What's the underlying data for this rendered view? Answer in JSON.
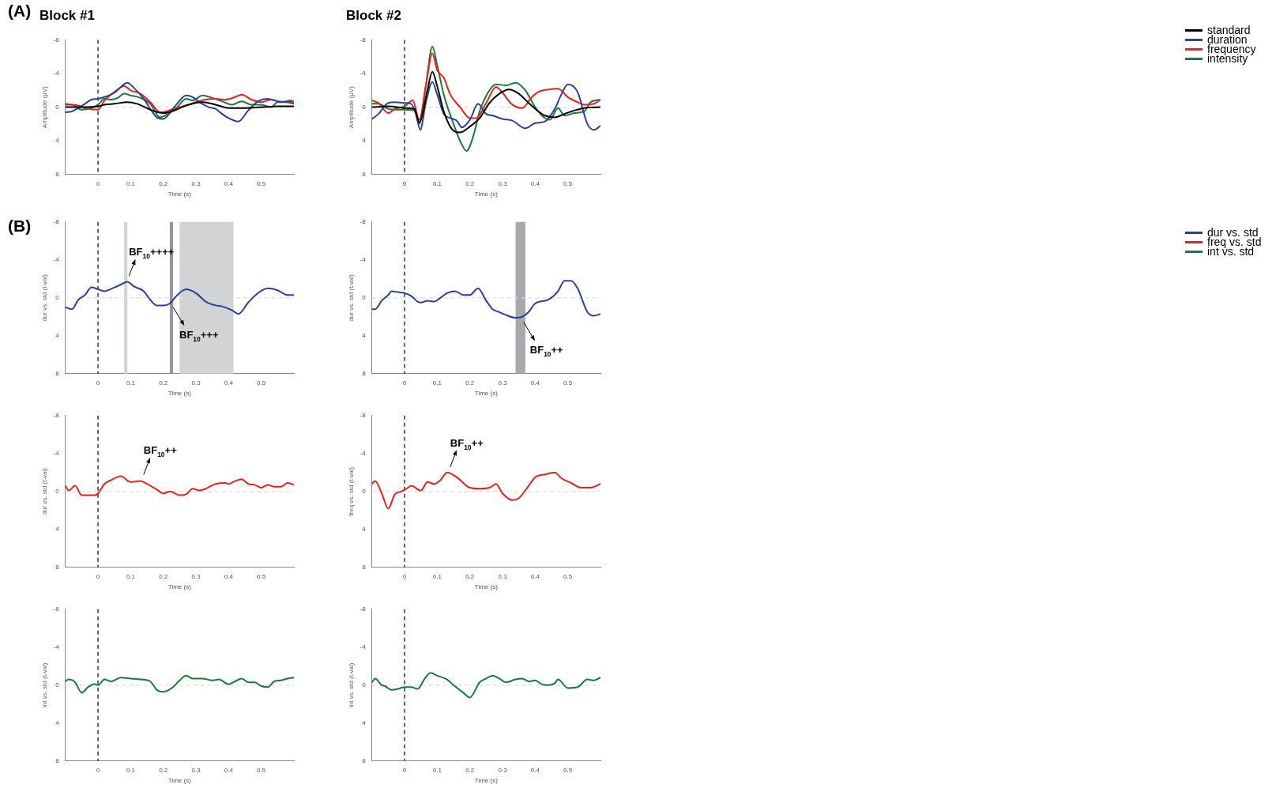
{
  "chart_data": [
    {
      "type": "line",
      "title": "Block #1",
      "xlabel": "Time (s)",
      "ylabel": "Amplitude (μV)",
      "annotations": [
        "(A)"
      ],
      "xlim": [
        -0.1,
        0.6
      ],
      "xticks": [
        0,
        0.1,
        0.2,
        0.3,
        0.4,
        0.5
      ],
      "ylim": [
        8,
        -8
      ],
      "yticks": [
        -8,
        -4,
        0,
        4,
        8
      ],
      "ref_lines": [
        {
          "axis": "x",
          "value": 0,
          "color": "#000000",
          "line_style": "dashed"
        },
        {
          "axis": "y",
          "value": 0,
          "color": "#dddddd",
          "line_style": "dashed"
        }
      ],
      "series": [
        {
          "color": "#000000",
          "x": [
            -0.1,
            -0.05,
            0,
            0.02,
            0.05,
            0.09,
            0.12,
            0.16,
            0.2,
            0.24,
            0.27,
            0.32,
            0.36,
            0.4,
            0.45,
            0.5,
            0.55,
            0.6
          ],
          "values": [
            0,
            0,
            -0.1,
            -0.3,
            -0.4,
            -0.6,
            -0.4,
            0.3,
            0.7,
            0.3,
            -0.2,
            -0.6,
            -0.3,
            0.1,
            0.1,
            0,
            -0.1,
            -0.1
          ]
        },
        {
          "color": "#2e3f97",
          "x": [
            -0.1,
            -0.08,
            -0.06,
            -0.04,
            -0.02,
            0,
            0.02,
            0.05,
            0.09,
            0.11,
            0.14,
            0.16,
            0.18,
            0.2,
            0.22,
            0.24,
            0.27,
            0.29,
            0.31,
            0.34,
            0.36,
            0.38,
            0.4,
            0.43,
            0.46,
            0.49,
            0.52,
            0.55,
            0.58,
            0.6
          ],
          "values": [
            0.6,
            0.5,
            0.1,
            -0.4,
            -0.9,
            -1,
            -1.2,
            -1.7,
            -2.9,
            -2.3,
            -1,
            0.2,
            1.2,
            1.4,
            0.7,
            -0.3,
            -1.4,
            -1.2,
            -0.6,
            0,
            0.2,
            0.8,
            1.3,
            1.7,
            0.4,
            -0.7,
            -1,
            -0.7,
            -0.6,
            -0.4
          ]
        },
        {
          "color": "#e8211f",
          "x": [
            -0.1,
            -0.08,
            -0.06,
            -0.04,
            0,
            0.02,
            0.05,
            0.08,
            0.1,
            0.13,
            0.16,
            0.19,
            0.21,
            0.23,
            0.26,
            0.3,
            0.33,
            0.36,
            0.39,
            0.42,
            0.44,
            0.47,
            0.5,
            0.53,
            0.56,
            0.59,
            0.6
          ],
          "values": [
            -0.4,
            -0.3,
            -0.2,
            0.1,
            0.3,
            -0.8,
            -1.8,
            -2.5,
            -2,
            -1.6,
            -0.6,
            0.6,
            0.5,
            0.2,
            -0.1,
            -0.6,
            -0.9,
            -1,
            -0.9,
            -1.2,
            -1.5,
            -0.9,
            -0.6,
            -0.9,
            -0.6,
            -0.8,
            -0.6
          ]
        },
        {
          "color": "#1a7a38",
          "x": [
            -0.1,
            -0.08,
            -0.05,
            -0.02,
            0,
            0.02,
            0.04,
            0.06,
            0.08,
            0.1,
            0.13,
            0.16,
            0.19,
            0.21,
            0.24,
            0.27,
            0.29,
            0.32,
            0.35,
            0.38,
            0.41,
            0.44,
            0.47,
            0.5,
            0.53,
            0.55,
            0.58,
            0.6
          ],
          "values": [
            -0.3,
            -0.3,
            0.3,
            0.1,
            -0.3,
            -1,
            -0.9,
            -1.1,
            -1.6,
            -1.4,
            -1.1,
            -0.4,
            1.2,
            0.9,
            0.1,
            -1,
            -0.8,
            -1.4,
            -1.1,
            -0.7,
            -0.3,
            -0.7,
            -0.3,
            -0.3,
            0,
            -0.6,
            -0.6,
            -0.7
          ]
        }
      ]
    },
    {
      "type": "line",
      "title": "Block #2",
      "xlabel": "Time (s)",
      "ylabel": "Amplitude (μV)",
      "legend": "right",
      "xlim": [
        -0.1,
        0.6
      ],
      "xticks": [
        0,
        0.1,
        0.2,
        0.3,
        0.4,
        0.5
      ],
      "ylim": [
        8,
        -8
      ],
      "yticks": [
        -8,
        -4,
        0,
        4,
        8
      ],
      "ref_lines": [
        {
          "axis": "x",
          "value": 0,
          "color": "#000000",
          "line_style": "dashed"
        },
        {
          "axis": "y",
          "value": 0,
          "color": "#dddddd",
          "line_style": "dashed"
        }
      ],
      "series": [
        {
          "name": "standard",
          "color": "#000000",
          "x": [
            -0.1,
            -0.05,
            0,
            0.03,
            0.045,
            0.07,
            0.085,
            0.1,
            0.12,
            0.15,
            0.17,
            0.2,
            0.23,
            0.26,
            0.29,
            0.32,
            0.35,
            0.38,
            0.41,
            0.43,
            0.46,
            0.49,
            0.52,
            0.55,
            0.6
          ],
          "values": [
            0,
            -0.1,
            0.1,
            0.2,
            1.8,
            -2,
            -4.2,
            -2.5,
            0.5,
            2.8,
            3,
            2.3,
            1.3,
            -0.5,
            -1.6,
            -2.1,
            -1.6,
            -0.5,
            0.5,
            1,
            1.2,
            0.8,
            0.4,
            0.1,
            0
          ]
        },
        {
          "name": "duration",
          "color": "#2e3f97",
          "x": [
            -0.1,
            -0.08,
            -0.05,
            -0.03,
            0,
            0.02,
            0.035,
            0.048,
            0.065,
            0.085,
            0.1,
            0.12,
            0.14,
            0.16,
            0.175,
            0.2,
            0.225,
            0.25,
            0.27,
            0.3,
            0.33,
            0.37,
            0.4,
            0.43,
            0.46,
            0.48,
            0.5,
            0.53,
            0.56,
            0.58,
            0.6
          ],
          "values": [
            1.4,
            0.8,
            -0.5,
            -0.6,
            -0.5,
            -0.4,
            0.8,
            2.7,
            -0.5,
            -3,
            -1.5,
            0.8,
            1.3,
            1.6,
            2.4,
            1.5,
            -0.4,
            0.8,
            1,
            1.4,
            1.6,
            2.5,
            1.9,
            1.7,
            0.2,
            -1.5,
            -2.7,
            -1.8,
            2,
            2.7,
            2.2
          ]
        },
        {
          "name": "frequency",
          "color": "#e8211f",
          "x": [
            -0.1,
            -0.08,
            -0.05,
            -0.03,
            0,
            0.025,
            0.045,
            0.065,
            0.085,
            0.1,
            0.12,
            0.14,
            0.17,
            0.2,
            0.22,
            0.25,
            0.28,
            0.3,
            0.33,
            0.36,
            0.39,
            0.41,
            0.44,
            0.47,
            0.5,
            0.53,
            0.55,
            0.58,
            0.6
          ],
          "values": [
            -0.8,
            -0.5,
            0.7,
            0.2,
            -0.1,
            -0.8,
            1.5,
            -2.5,
            -6.4,
            -4.4,
            -3.5,
            -1.5,
            0,
            1.3,
            1.3,
            -0.5,
            -2.4,
            -1.7,
            -0.3,
            0.1,
            -1.2,
            -1.8,
            -2.1,
            -2.2,
            -1.2,
            -0.6,
            -0.3,
            -0.4,
            -0.9
          ]
        },
        {
          "name": "intensity",
          "color": "#1a7a38",
          "x": [
            -0.1,
            -0.08,
            -0.05,
            -0.02,
            0,
            0.03,
            0.045,
            0.065,
            0.085,
            0.1,
            0.12,
            0.15,
            0.17,
            0.19,
            0.21,
            0.23,
            0.26,
            0.28,
            0.31,
            0.34,
            0.37,
            0.4,
            0.43,
            0.445,
            0.47,
            0.49,
            0.52,
            0.55,
            0.57,
            0.6
          ],
          "values": [
            -0.4,
            -0.4,
            0.2,
            0.3,
            0.3,
            0.4,
            2,
            -2.5,
            -7.2,
            -5,
            -1.5,
            2,
            4,
            5.2,
            3.5,
            0.5,
            -2,
            -2.7,
            -2.6,
            -2.9,
            -2,
            0,
            1.3,
            1.5,
            0.1,
            1,
            0.7,
            0.5,
            -0.6,
            -0.9
          ]
        }
      ]
    },
    {
      "type": "line",
      "xlabel": "Time (s)",
      "ylabel": "dur vs. std (t-val)",
      "annotations": [
        "(B)",
        {
          "text": "BF$_{10}$++++",
          "x": 0.09,
          "y": -1.7
        },
        {
          "text": "BF$_{10}$+++",
          "x": 0.225,
          "y": 0.4
        }
      ],
      "xlim": [
        -0.1,
        0.6
      ],
      "xticks": [
        0,
        0.1,
        0.2,
        0.3,
        0.4,
        0.5
      ],
      "ylim": [
        8,
        -8
      ],
      "yticks": [
        -8,
        -4,
        0,
        4,
        8
      ],
      "bands": [
        {
          "axis": "x",
          "from": 0.08,
          "to": 0.09,
          "color": "#d1d3d4"
        },
        {
          "axis": "x",
          "from": 0.22,
          "to": 0.23,
          "color": "#939598"
        },
        {
          "axis": "x",
          "from": 0.25,
          "to": 0.415,
          "color": "#d1d3d4"
        }
      ],
      "ref_lines": [
        {
          "axis": "x",
          "value": 0,
          "color": "#000000",
          "line_style": "dashed"
        },
        {
          "axis": "y",
          "value": 0,
          "color": "#dddddd",
          "line_style": "dashed"
        }
      ],
      "series": [
        {
          "color": "#2e3f97",
          "x": [
            -0.1,
            -0.08,
            -0.06,
            -0.04,
            -0.02,
            0,
            0.02,
            0.05,
            0.07,
            0.09,
            0.11,
            0.14,
            0.16,
            0.18,
            0.2,
            0.22,
            0.24,
            0.27,
            0.3,
            0.33,
            0.36,
            0.38,
            0.41,
            0.43,
            0.46,
            0.49,
            0.52,
            0.55,
            0.58,
            0.6
          ],
          "values": [
            1,
            1.2,
            0.2,
            -0.3,
            -1.1,
            -0.9,
            -0.7,
            -1.1,
            -1.4,
            -1.7,
            -1.2,
            -0.7,
            0.2,
            0.8,
            0.8,
            0.6,
            -0.2,
            -0.9,
            -0.5,
            0.4,
            0.8,
            0.9,
            1.3,
            1.7,
            0.5,
            -0.5,
            -1,
            -0.8,
            -0.3,
            -0.3
          ]
        }
      ]
    },
    {
      "type": "line",
      "xlabel": "Time (s)",
      "ylabel": "dur vs. std (t-val)",
      "legend": "right",
      "annotations": [
        {
          "text": "BF$_{10}$++",
          "x": 0.36,
          "y": 2
        }
      ],
      "xlim": [
        -0.1,
        0.6
      ],
      "xticks": [
        0,
        0.1,
        0.2,
        0.3,
        0.4,
        0.5
      ],
      "ylim": [
        8,
        -8
      ],
      "yticks": [
        -8,
        -4,
        0,
        4,
        8
      ],
      "bands": [
        {
          "axis": "x",
          "from": 0.34,
          "to": 0.37,
          "color": "#a7a9ac"
        }
      ],
      "ref_lines": [
        {
          "axis": "x",
          "value": 0,
          "color": "#000000",
          "line_style": "dashed"
        },
        {
          "axis": "y",
          "value": 0,
          "color": "#dddddd",
          "line_style": "dashed"
        }
      ],
      "series": [
        {
          "name": "dur vs. std",
          "color": "#2e3f97",
          "x": [
            -0.1,
            -0.09,
            -0.07,
            -0.05,
            -0.04,
            -0.02,
            0,
            0.02,
            0.04,
            0.05,
            0.07,
            0.09,
            0.11,
            0.13,
            0.155,
            0.18,
            0.2,
            0.225,
            0.25,
            0.27,
            0.29,
            0.31,
            0.34,
            0.36,
            0.38,
            0.4,
            0.44,
            0.47,
            0.49,
            0.51,
            0.53,
            0.56,
            0.58,
            0.6
          ],
          "values": [
            1.2,
            1.2,
            0.3,
            -0.3,
            -0.7,
            -0.6,
            -0.5,
            -0.2,
            0.4,
            0.5,
            0.3,
            0.4,
            0,
            -0.5,
            -0.7,
            -0.3,
            -0.3,
            -1,
            0.3,
            1.2,
            1.5,
            1.8,
            2.1,
            2,
            1.5,
            0.6,
            0.2,
            -0.7,
            -1.8,
            -1.8,
            -1,
            1.5,
            1.9,
            1.7
          ]
        }
      ]
    },
    {
      "type": "line",
      "xlabel": "Time (s)",
      "ylabel": "dur vs. std (t-val)",
      "annotations": [
        {
          "text": "BF$_{10}$++",
          "x": 0.135,
          "y": -1.2
        }
      ],
      "xlim": [
        -0.1,
        0.6
      ],
      "xticks": [
        0,
        0.1,
        0.2,
        0.3,
        0.4,
        0.5
      ],
      "ylim": [
        8,
        -8
      ],
      "yticks": [
        -8,
        -4,
        0,
        4,
        8
      ],
      "ref_lines": [
        {
          "axis": "x",
          "value": 0,
          "color": "#000000",
          "line_style": "dashed"
        },
        {
          "axis": "y",
          "value": 0,
          "color": "#dddddd",
          "line_style": "dashed"
        }
      ],
      "series": [
        {
          "color": "#e8211f",
          "x": [
            -0.1,
            -0.09,
            -0.07,
            -0.05,
            -0.03,
            -0.01,
            0,
            0.02,
            0.04,
            0.07,
            0.1,
            0.13,
            0.15,
            0.18,
            0.2,
            0.22,
            0.23,
            0.25,
            0.27,
            0.29,
            0.31,
            0.33,
            0.36,
            0.39,
            0.4,
            0.42,
            0.44,
            0.46,
            0.48,
            0.5,
            0.52,
            0.54,
            0.56,
            0.58,
            0.6
          ],
          "values": [
            -0.6,
            -0.1,
            -0.6,
            0.4,
            0.4,
            0.4,
            0.2,
            -0.8,
            -1.2,
            -1.6,
            -1,
            -1.1,
            -0.8,
            -0.2,
            0.2,
            0,
            0.1,
            0.4,
            0.3,
            -0.3,
            -0.1,
            -0.3,
            -0.8,
            -0.9,
            -0.8,
            -1.1,
            -1.3,
            -0.8,
            -0.7,
            -0.4,
            -0.7,
            -0.5,
            -0.5,
            -0.9,
            -0.7
          ]
        }
      ]
    },
    {
      "type": "line",
      "xlabel": "Time (s)",
      "ylabel": "freq vs. std (t-val)",
      "legend": "right",
      "annotations": [
        {
          "text": "BF$_{10}$++",
          "x": 0.135,
          "y": -2
        }
      ],
      "xlim": [
        -0.1,
        0.6
      ],
      "xticks": [
        0,
        0.1,
        0.2,
        0.3,
        0.4,
        0.5
      ],
      "ylim": [
        8,
        -8
      ],
      "yticks": [
        -8,
        -4,
        0,
        4,
        8
      ],
      "ref_lines": [
        {
          "axis": "x",
          "value": 0,
          "color": "#000000",
          "line_style": "dashed"
        },
        {
          "axis": "y",
          "value": 0,
          "color": "#dddddd",
          "line_style": "dashed"
        }
      ],
      "series": [
        {
          "name": "freq vs. std",
          "color": "#e8211f",
          "x": [
            -0.1,
            -0.09,
            -0.07,
            -0.05,
            -0.03,
            -0.01,
            0.01,
            0.02,
            0.05,
            0.07,
            0.09,
            0.11,
            0.13,
            0.16,
            0.2,
            0.23,
            0.26,
            0.28,
            0.3,
            0.33,
            0.35,
            0.38,
            0.4,
            0.43,
            0.46,
            0.48,
            0.51,
            0.54,
            0.57,
            0.6
          ],
          "values": [
            -0.8,
            -1.1,
            0.2,
            1.8,
            0.3,
            0,
            -0.4,
            -0.6,
            -0.1,
            -1,
            -0.8,
            -1.2,
            -2,
            -1.5,
            -0.4,
            -0.3,
            -0.4,
            -0.8,
            0.2,
            0.9,
            0.7,
            -0.6,
            -1.5,
            -1.8,
            -2,
            -1.4,
            -0.9,
            -0.4,
            -0.4,
            -0.8
          ]
        }
      ]
    },
    {
      "type": "line",
      "xlabel": "Time (s)",
      "ylabel": "int vs. std (t-val)",
      "xlim": [
        -0.1,
        0.6
      ],
      "xticks": [
        0,
        0.1,
        0.2,
        0.3,
        0.4,
        0.5
      ],
      "ylim": [
        8,
        -8
      ],
      "yticks": [
        -8,
        -4,
        0,
        4,
        8
      ],
      "ref_lines": [
        {
          "axis": "x",
          "value": 0,
          "color": "#000000",
          "line_style": "dashed"
        },
        {
          "axis": "y",
          "value": 0,
          "color": "#dddddd",
          "line_style": "dashed"
        }
      ],
      "series": [
        {
          "color": "#1a7a38",
          "x": [
            -0.1,
            -0.09,
            -0.07,
            -0.05,
            -0.03,
            -0.01,
            0,
            0.02,
            0.04,
            0.07,
            0.1,
            0.13,
            0.16,
            0.18,
            0.2,
            0.23,
            0.25,
            0.27,
            0.29,
            0.32,
            0.35,
            0.37,
            0.4,
            0.42,
            0.44,
            0.46,
            0.48,
            0.5,
            0.52,
            0.54,
            0.56,
            0.58,
            0.6
          ],
          "values": [
            -0.4,
            -0.6,
            -0.3,
            0.8,
            0.2,
            -0.1,
            0,
            -0.6,
            -0.4,
            -0.8,
            -0.7,
            -0.6,
            -0.4,
            0.5,
            0.7,
            0.2,
            -0.5,
            -1,
            -0.7,
            -0.7,
            -0.5,
            -0.6,
            -0.1,
            -0.4,
            -0.7,
            -0.3,
            -0.3,
            0.1,
            0.2,
            -0.4,
            -0.5,
            -0.7,
            -0.8
          ]
        }
      ]
    },
    {
      "type": "line",
      "xlabel": "Time (s)",
      "ylabel": "int vs. std (t-val)",
      "legend": "right",
      "xlim": [
        -0.1,
        0.6
      ],
      "xticks": [
        0,
        0.1,
        0.2,
        0.3,
        0.4,
        0.5
      ],
      "ylim": [
        8,
        -8
      ],
      "yticks": [
        -8,
        -4,
        0,
        4,
        8
      ],
      "ref_lines": [
        {
          "axis": "x",
          "value": 0,
          "color": "#000000",
          "line_style": "dashed"
        },
        {
          "axis": "y",
          "value": 0,
          "color": "#dddddd",
          "line_style": "dashed"
        }
      ],
      "series": [
        {
          "name": "int vs. std",
          "color": "#1a7a38",
          "x": [
            -0.1,
            -0.09,
            -0.07,
            -0.06,
            -0.04,
            -0.02,
            0,
            0.02,
            0.04,
            0.06,
            0.08,
            0.1,
            0.13,
            0.15,
            0.18,
            0.2,
            0.23,
            0.25,
            0.27,
            0.29,
            0.31,
            0.34,
            0.36,
            0.38,
            0.4,
            0.42,
            0.44,
            0.46,
            0.47,
            0.5,
            0.53,
            0.56,
            0.58,
            0.6
          ],
          "values": [
            -0.3,
            -0.7,
            0,
            0.1,
            0.5,
            0.4,
            0.2,
            0.2,
            0.4,
            -0.6,
            -1.3,
            -1,
            -0.6,
            0,
            0.8,
            1.3,
            -0.3,
            -0.7,
            -1,
            -0.7,
            -0.3,
            -0.6,
            -0.7,
            -0.4,
            -0.5,
            -0.1,
            0,
            -0.2,
            -0.6,
            0.3,
            0.2,
            -0.6,
            -0.5,
            -0.8
          ]
        }
      ]
    }
  ]
}
